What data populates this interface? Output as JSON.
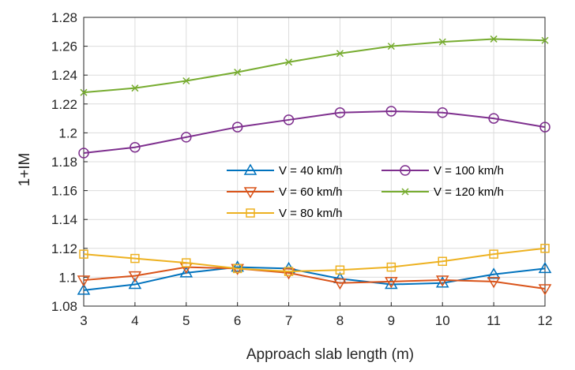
{
  "chart_data": {
    "type": "line",
    "title": "",
    "xlabel": "Approach slab length (m)",
    "ylabel": "1+IM",
    "x": [
      3,
      4,
      5,
      6,
      7,
      8,
      9,
      10,
      11,
      12
    ],
    "xlim": [
      3,
      12
    ],
    "ylim": [
      1.08,
      1.28
    ],
    "xticks": [
      "3",
      "4",
      "5",
      "6",
      "7",
      "8",
      "9",
      "10",
      "11",
      "12"
    ],
    "yticks": [
      "1.08",
      "1.1",
      "1.12",
      "1.14",
      "1.16",
      "1.18",
      "1.2",
      "1.22",
      "1.24",
      "1.26",
      "1.28"
    ],
    "grid": true,
    "legend_position": "center-right",
    "series": [
      {
        "name": "V = 40 km/h",
        "color": "#0072BD",
        "marker": "triangle-up",
        "values": [
          1.091,
          1.095,
          1.103,
          1.107,
          1.106,
          1.099,
          1.095,
          1.096,
          1.102,
          1.106
        ]
      },
      {
        "name": "V = 100 km/h",
        "color": "#7E2F8E",
        "marker": "circle",
        "values": [
          1.186,
          1.19,
          1.197,
          1.204,
          1.209,
          1.214,
          1.215,
          1.214,
          1.21,
          1.204
        ]
      },
      {
        "name": "V = 60 km/h",
        "color": "#D95319",
        "marker": "triangle-down",
        "values": [
          1.098,
          1.101,
          1.107,
          1.106,
          1.103,
          1.096,
          1.097,
          1.098,
          1.097,
          1.092
        ]
      },
      {
        "name": "V = 120 km/h",
        "color": "#77AC30",
        "marker": "x",
        "values": [
          1.228,
          1.231,
          1.236,
          1.242,
          1.249,
          1.255,
          1.26,
          1.263,
          1.265,
          1.264
        ]
      },
      {
        "name": "V = 80 km/h",
        "color": "#EDB120",
        "marker": "square",
        "values": [
          1.116,
          1.113,
          1.11,
          1.106,
          1.104,
          1.105,
          1.107,
          1.111,
          1.116,
          1.12
        ]
      }
    ]
  }
}
